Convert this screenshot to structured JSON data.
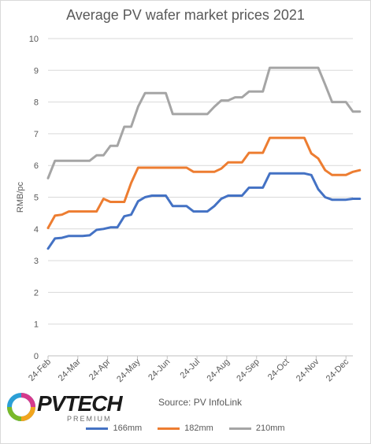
{
  "chart_data": {
    "type": "line",
    "title": "Average PV wafer market prices 2021",
    "ylabel": "RMB/pc",
    "xlabel": "",
    "ylim": [
      0,
      10
    ],
    "yticks": [
      0,
      1,
      2,
      3,
      4,
      5,
      6,
      7,
      8,
      9,
      10
    ],
    "xticks": [
      "24-Feb",
      "24-Mar",
      "24-Apr",
      "24-May",
      "24-Jun",
      "24-Jul",
      "24-Aug",
      "24-Sep",
      "24-Oct",
      "24-Nov",
      "24-Dec"
    ],
    "x_week_range": [
      0,
      44
    ],
    "grid": true,
    "legend_position": "bottom",
    "series": [
      {
        "name": "166mm",
        "color": "#4472C4",
        "points": [
          [
            0,
            3.38
          ],
          [
            1,
            3.7
          ],
          [
            2,
            3.72
          ],
          [
            3,
            3.78
          ],
          [
            4,
            3.78
          ],
          [
            5,
            3.78
          ],
          [
            6,
            3.8
          ],
          [
            7,
            3.97
          ],
          [
            8,
            4.0
          ],
          [
            9,
            4.05
          ],
          [
            10,
            4.05
          ],
          [
            11,
            4.4
          ],
          [
            12,
            4.45
          ],
          [
            13,
            4.87
          ],
          [
            14,
            5.0
          ],
          [
            15,
            5.05
          ],
          [
            16,
            5.05
          ],
          [
            17,
            5.05
          ],
          [
            18,
            4.72
          ],
          [
            19,
            4.72
          ],
          [
            20,
            4.72
          ],
          [
            21,
            4.55
          ],
          [
            22,
            4.55
          ],
          [
            23,
            4.55
          ],
          [
            24,
            4.72
          ],
          [
            25,
            4.95
          ],
          [
            26,
            5.05
          ],
          [
            27,
            5.05
          ],
          [
            28,
            5.05
          ],
          [
            29,
            5.3
          ],
          [
            30,
            5.3
          ],
          [
            31,
            5.3
          ],
          [
            32,
            5.75
          ],
          [
            33,
            5.75
          ],
          [
            34,
            5.75
          ],
          [
            35,
            5.75
          ],
          [
            36,
            5.75
          ],
          [
            37,
            5.75
          ],
          [
            38,
            5.7
          ],
          [
            39,
            5.25
          ],
          [
            40,
            5.0
          ],
          [
            41,
            4.92
          ],
          [
            42,
            4.92
          ],
          [
            43,
            4.92
          ],
          [
            44,
            4.95
          ],
          [
            45,
            4.95
          ]
        ]
      },
      {
        "name": "182mm",
        "color": "#ED7D31",
        "points": [
          [
            0,
            4.03
          ],
          [
            1,
            4.42
          ],
          [
            2,
            4.45
          ],
          [
            3,
            4.55
          ],
          [
            4,
            4.55
          ],
          [
            5,
            4.55
          ],
          [
            6,
            4.55
          ],
          [
            7,
            4.55
          ],
          [
            8,
            4.95
          ],
          [
            9,
            4.85
          ],
          [
            10,
            4.85
          ],
          [
            11,
            4.85
          ],
          [
            12,
            5.45
          ],
          [
            13,
            5.93
          ],
          [
            14,
            5.93
          ],
          [
            15,
            5.93
          ],
          [
            16,
            5.93
          ],
          [
            17,
            5.93
          ],
          [
            18,
            5.93
          ],
          [
            19,
            5.93
          ],
          [
            20,
            5.93
          ],
          [
            21,
            5.8
          ],
          [
            22,
            5.8
          ],
          [
            23,
            5.8
          ],
          [
            24,
            5.8
          ],
          [
            25,
            5.9
          ],
          [
            26,
            6.1
          ],
          [
            27,
            6.1
          ],
          [
            28,
            6.1
          ],
          [
            29,
            6.4
          ],
          [
            30,
            6.4
          ],
          [
            31,
            6.4
          ],
          [
            32,
            6.87
          ],
          [
            33,
            6.87
          ],
          [
            34,
            6.87
          ],
          [
            35,
            6.87
          ],
          [
            36,
            6.87
          ],
          [
            37,
            6.87
          ],
          [
            38,
            6.38
          ],
          [
            39,
            6.22
          ],
          [
            40,
            5.85
          ],
          [
            41,
            5.7
          ],
          [
            42,
            5.7
          ],
          [
            43,
            5.7
          ],
          [
            44,
            5.8
          ],
          [
            45,
            5.85
          ]
        ]
      },
      {
        "name": "210mm",
        "color": "#A5A5A5",
        "points": [
          [
            0,
            5.6
          ],
          [
            1,
            6.15
          ],
          [
            2,
            6.15
          ],
          [
            3,
            6.15
          ],
          [
            4,
            6.15
          ],
          [
            5,
            6.15
          ],
          [
            6,
            6.15
          ],
          [
            7,
            6.32
          ],
          [
            8,
            6.32
          ],
          [
            9,
            6.62
          ],
          [
            10,
            6.62
          ],
          [
            11,
            7.22
          ],
          [
            12,
            7.22
          ],
          [
            13,
            7.85
          ],
          [
            14,
            8.28
          ],
          [
            15,
            8.28
          ],
          [
            16,
            8.28
          ],
          [
            17,
            8.28
          ],
          [
            18,
            7.62
          ],
          [
            19,
            7.62
          ],
          [
            20,
            7.62
          ],
          [
            21,
            7.62
          ],
          [
            22,
            7.62
          ],
          [
            23,
            7.62
          ],
          [
            24,
            7.85
          ],
          [
            25,
            8.05
          ],
          [
            26,
            8.05
          ],
          [
            27,
            8.15
          ],
          [
            28,
            8.15
          ],
          [
            29,
            8.33
          ],
          [
            30,
            8.33
          ],
          [
            31,
            8.33
          ],
          [
            32,
            9.08
          ],
          [
            33,
            9.08
          ],
          [
            34,
            9.08
          ],
          [
            35,
            9.08
          ],
          [
            36,
            9.08
          ],
          [
            37,
            9.08
          ],
          [
            38,
            9.08
          ],
          [
            39,
            9.08
          ],
          [
            40,
            8.55
          ],
          [
            41,
            8.0
          ],
          [
            42,
            8.0
          ],
          [
            43,
            8.0
          ],
          [
            44,
            7.7
          ],
          [
            45,
            7.7
          ]
        ]
      }
    ]
  },
  "source_text": "Source: PV InfoLink",
  "logo": {
    "word_pv": "PV",
    "word_tech": "TECH",
    "sub": "PREMIUM"
  }
}
